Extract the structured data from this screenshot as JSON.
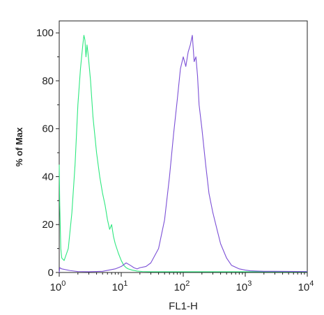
{
  "chart_data": {
    "type": "line",
    "title": "",
    "xlabel": "FL1-H",
    "ylabel": "% of Max",
    "x_scale": "log",
    "xlim": [
      1,
      10000
    ],
    "ylim": [
      0,
      105
    ],
    "y_ticks": [
      "0",
      "20",
      "40",
      "60",
      "80",
      "100"
    ],
    "x_ticks": [
      {
        "base": "10",
        "exp": "0"
      },
      {
        "base": "10",
        "exp": "1"
      },
      {
        "base": "10",
        "exp": "2"
      },
      {
        "base": "10",
        "exp": "3"
      },
      {
        "base": "10",
        "exp": "4"
      }
    ],
    "grid": false,
    "legend": "none",
    "series": [
      {
        "color": "#2ee87f",
        "x": [
          1.0,
          1.02,
          1.06,
          1.1,
          1.2,
          1.4,
          1.6,
          1.8,
          2.0,
          2.2,
          2.4,
          2.5,
          2.6,
          2.7,
          2.8,
          2.9,
          3.0,
          3.2,
          3.5,
          4.0,
          4.5,
          5.0,
          5.5,
          6.0,
          6.5,
          7.0,
          7.5,
          8.0,
          9.0,
          10.0,
          11.0,
          12.0,
          13.0,
          15.0,
          18.0,
          22.0,
          30.0,
          50.0,
          100.0,
          300.0,
          1000.0,
          3000.0,
          10000.0
        ],
        "y": [
          45,
          28,
          10,
          6,
          5,
          10,
          25,
          45,
          70,
          85,
          95,
          99,
          97,
          90,
          95,
          92,
          88,
          80,
          65,
          50,
          40,
          33,
          28,
          22,
          18,
          20,
          15,
          12,
          8,
          5,
          3,
          2,
          1.5,
          1.0,
          0.6,
          0.4,
          0.3,
          0.3,
          0.3,
          0.3,
          0.3,
          0.3,
          0.3
        ]
      },
      {
        "color": "#7b4fd6",
        "x": [
          1.0,
          1.02,
          1.1,
          1.5,
          2.0,
          3.0,
          5.0,
          8.0,
          10.0,
          12.0,
          14.0,
          16.0,
          18.0,
          20.0,
          25.0,
          30.0,
          40.0,
          50.0,
          60.0,
          70.0,
          80.0,
          90.0,
          100.0,
          110.0,
          120.0,
          130.0,
          140.0,
          150.0,
          160.0,
          170.0,
          180.0,
          200.0,
          230.0,
          260.0,
          300.0,
          350.0,
          400.0,
          500.0,
          600.0,
          800.0,
          1000.0,
          1200.0,
          1500.0,
          2000.0,
          3000.0,
          10000.0
        ],
        "y": [
          0,
          2,
          1.5,
          0.8,
          0.4,
          0.3,
          0.5,
          1.5,
          2.5,
          4,
          3,
          2,
          1.5,
          2,
          2.5,
          4,
          10,
          22,
          40,
          58,
          72,
          85,
          90,
          86,
          92,
          95,
          99,
          88,
          90,
          82,
          70,
          60,
          45,
          33,
          25,
          18,
          12,
          6,
          3,
          1.5,
          1,
          0.7,
          0.6,
          0.5,
          0.5,
          0.4
        ]
      }
    ]
  }
}
